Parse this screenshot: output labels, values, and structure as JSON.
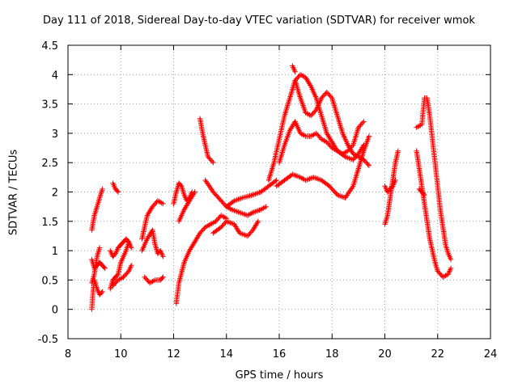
{
  "chart_data": {
    "type": "scatter",
    "title": "Day 111 of 2018, Sidereal Day-to-day VTEC variation (SDTVAR) for receiver wmok",
    "xlabel": "GPS time / hours",
    "ylabel": "SDTVAR / TECUs",
    "xlim": [
      8,
      24
    ],
    "ylim": [
      -0.5,
      4.5
    ],
    "xticks": [
      "8",
      "10",
      "12",
      "14",
      "16",
      "18",
      "20",
      "22",
      "24"
    ],
    "yticks": [
      "-0.5",
      "0",
      "0.5",
      "1",
      "1.5",
      "2",
      "2.5",
      "3",
      "3.5",
      "4",
      "4.5"
    ],
    "grid": true,
    "marker": "+",
    "color": "#ff0000",
    "series": [
      {
        "name": "s1",
        "x": [
          8.9,
          9.0,
          9.1,
          9.2,
          9.3
        ],
        "y": [
          1.35,
          1.6,
          1.75,
          1.9,
          2.05
        ]
      },
      {
        "name": "s2",
        "x": [
          8.9,
          9.0,
          9.1,
          9.2,
          9.3,
          9.4
        ],
        "y": [
          0.85,
          0.7,
          0.75,
          0.8,
          0.75,
          0.7
        ]
      },
      {
        "name": "s3",
        "x": [
          8.9,
          8.95,
          9.0,
          9.1,
          9.2,
          9.3
        ],
        "y": [
          0.0,
          0.3,
          0.5,
          0.35,
          0.25,
          0.3
        ]
      },
      {
        "name": "s4",
        "x": [
          8.9,
          9.0,
          9.1,
          9.2
        ],
        "y": [
          0.45,
          0.6,
          0.9,
          1.05
        ]
      },
      {
        "name": "s5",
        "x": [
          9.7,
          9.8,
          9.9
        ],
        "y": [
          2.15,
          2.05,
          2.0
        ]
      },
      {
        "name": "s6",
        "x": [
          9.6,
          9.7,
          9.8,
          9.9,
          10.0,
          10.1,
          10.2,
          10.3,
          10.4
        ],
        "y": [
          1.0,
          0.9,
          0.95,
          1.05,
          1.1,
          1.15,
          1.2,
          1.15,
          1.05
        ]
      },
      {
        "name": "s7",
        "x": [
          9.6,
          9.7,
          9.8,
          9.9,
          10.0,
          10.1,
          10.2,
          10.3
        ],
        "y": [
          0.35,
          0.5,
          0.55,
          0.6,
          0.8,
          0.9,
          1.0,
          1.15
        ]
      },
      {
        "name": "s8",
        "x": [
          9.7,
          9.9,
          10.1,
          10.3,
          10.4
        ],
        "y": [
          0.4,
          0.5,
          0.55,
          0.65,
          0.75
        ]
      },
      {
        "name": "s9",
        "x": [
          10.8,
          10.9,
          11.0,
          11.2,
          11.4,
          11.6
        ],
        "y": [
          1.2,
          1.4,
          1.6,
          1.75,
          1.85,
          1.8
        ]
      },
      {
        "name": "s10",
        "x": [
          10.8,
          11.0,
          11.2,
          11.3,
          11.4,
          11.5,
          11.6
        ],
        "y": [
          1.0,
          1.2,
          1.35,
          1.1,
          0.95,
          1.0,
          0.9
        ]
      },
      {
        "name": "s11",
        "x": [
          10.9,
          11.1,
          11.3,
          11.5,
          11.6
        ],
        "y": [
          0.55,
          0.45,
          0.5,
          0.5,
          0.55
        ]
      },
      {
        "name": "s12",
        "x": [
          12.0,
          12.1,
          12.2,
          12.3,
          12.4,
          12.5,
          12.6,
          12.7
        ],
        "y": [
          1.8,
          2.0,
          2.15,
          2.1,
          1.95,
          1.85,
          1.9,
          2.0
        ]
      },
      {
        "name": "s13",
        "x": [
          12.1,
          12.2,
          12.4,
          12.6,
          12.8,
          13.0,
          13.2,
          13.4,
          13.6,
          13.8,
          14.0
        ],
        "y": [
          0.1,
          0.45,
          0.8,
          1.0,
          1.15,
          1.3,
          1.4,
          1.45,
          1.5,
          1.6,
          1.55
        ]
      },
      {
        "name": "s14",
        "x": [
          12.2,
          12.4,
          12.6,
          12.8
        ],
        "y": [
          1.5,
          1.7,
          1.85,
          2.0
        ]
      },
      {
        "name": "s15",
        "x": [
          13.0,
          13.1,
          13.2,
          13.3,
          13.5
        ],
        "y": [
          3.25,
          3.0,
          2.8,
          2.6,
          2.5
        ]
      },
      {
        "name": "s16",
        "x": [
          13.2,
          13.5,
          13.8,
          14.0,
          14.2,
          14.5,
          14.8,
          15.0,
          15.3,
          15.5
        ],
        "y": [
          2.2,
          2.0,
          1.85,
          1.75,
          1.7,
          1.65,
          1.6,
          1.65,
          1.7,
          1.75
        ]
      },
      {
        "name": "s17",
        "x": [
          13.5,
          13.8,
          14.0,
          14.3,
          14.5,
          14.8,
          15.0,
          15.2
        ],
        "y": [
          1.3,
          1.4,
          1.5,
          1.45,
          1.3,
          1.25,
          1.35,
          1.5
        ]
      },
      {
        "name": "s18",
        "x": [
          14.0,
          14.3,
          14.6,
          15.0,
          15.3,
          15.6,
          15.9
        ],
        "y": [
          1.75,
          1.85,
          1.9,
          1.95,
          2.0,
          2.1,
          2.2
        ]
      },
      {
        "name": "s19",
        "x": [
          15.6,
          15.8,
          16.0,
          16.2,
          16.4,
          16.6,
          16.8,
          17.0,
          17.2,
          17.4,
          17.6,
          17.8,
          18.0,
          18.2,
          18.4,
          18.6,
          18.8,
          19.0,
          19.2
        ],
        "y": [
          2.2,
          2.5,
          2.9,
          3.3,
          3.6,
          3.9,
          4.0,
          3.95,
          3.8,
          3.6,
          3.3,
          3.0,
          2.85,
          2.7,
          2.65,
          2.7,
          2.8,
          3.1,
          3.2
        ]
      },
      {
        "name": "s20",
        "x": [
          16.0,
          16.2,
          16.4,
          16.6,
          16.8,
          17.0,
          17.2,
          17.4,
          17.6,
          17.8,
          18.0,
          18.2,
          18.5,
          18.8,
          19.0,
          19.2
        ],
        "y": [
          2.5,
          2.8,
          3.05,
          3.2,
          3.0,
          2.95,
          2.95,
          3.0,
          2.9,
          2.85,
          2.75,
          2.7,
          2.6,
          2.55,
          2.65,
          2.8
        ]
      },
      {
        "name": "s21",
        "x": [
          16.6,
          16.8,
          17.0,
          17.2,
          17.4,
          17.6,
          17.8,
          18.0,
          18.2,
          18.4,
          18.6,
          18.8,
          19.0,
          19.2,
          19.4
        ],
        "y": [
          3.9,
          3.6,
          3.35,
          3.3,
          3.4,
          3.6,
          3.7,
          3.6,
          3.3,
          3.0,
          2.8,
          2.65,
          2.6,
          2.55,
          2.45
        ]
      },
      {
        "name": "s22",
        "x": [
          15.9,
          16.2,
          16.5,
          16.8,
          17.0,
          17.3,
          17.6,
          17.9,
          18.2,
          18.5,
          18.8,
          19.0,
          19.2,
          19.4
        ],
        "y": [
          2.1,
          2.2,
          2.3,
          2.25,
          2.2,
          2.25,
          2.2,
          2.1,
          1.95,
          1.9,
          2.1,
          2.4,
          2.7,
          2.95
        ]
      },
      {
        "name": "s23",
        "x": [
          16.5,
          16.6
        ],
        "y": [
          4.15,
          4.05
        ]
      },
      {
        "name": "s24",
        "x": [
          20.0,
          20.1,
          20.2,
          20.3,
          20.4,
          20.5
        ],
        "y": [
          1.45,
          1.6,
          1.9,
          2.2,
          2.5,
          2.7
        ]
      },
      {
        "name": "s25",
        "x": [
          20.0,
          20.1,
          20.2,
          20.3,
          20.4
        ],
        "y": [
          2.1,
          2.0,
          2.05,
          2.1,
          2.2
        ]
      },
      {
        "name": "s26",
        "x": [
          21.2,
          21.3,
          21.4,
          21.5,
          21.6,
          21.7,
          21.8,
          21.9,
          22.0,
          22.2,
          22.4,
          22.5
        ],
        "y": [
          2.7,
          2.4,
          2.1,
          1.8,
          1.5,
          1.2,
          1.0,
          0.8,
          0.65,
          0.55,
          0.6,
          0.7
        ]
      },
      {
        "name": "s27",
        "x": [
          21.2,
          21.4,
          21.5,
          21.6,
          21.7,
          21.8,
          21.9,
          22.0,
          22.1,
          22.2,
          22.3,
          22.4,
          22.5
        ],
        "y": [
          3.1,
          3.15,
          3.6,
          3.6,
          3.3,
          2.9,
          2.5,
          2.1,
          1.7,
          1.4,
          1.1,
          0.95,
          0.85
        ]
      },
      {
        "name": "s28",
        "x": [
          21.3,
          21.4,
          21.5
        ],
        "y": [
          2.05,
          2.0,
          1.95
        ]
      }
    ]
  }
}
